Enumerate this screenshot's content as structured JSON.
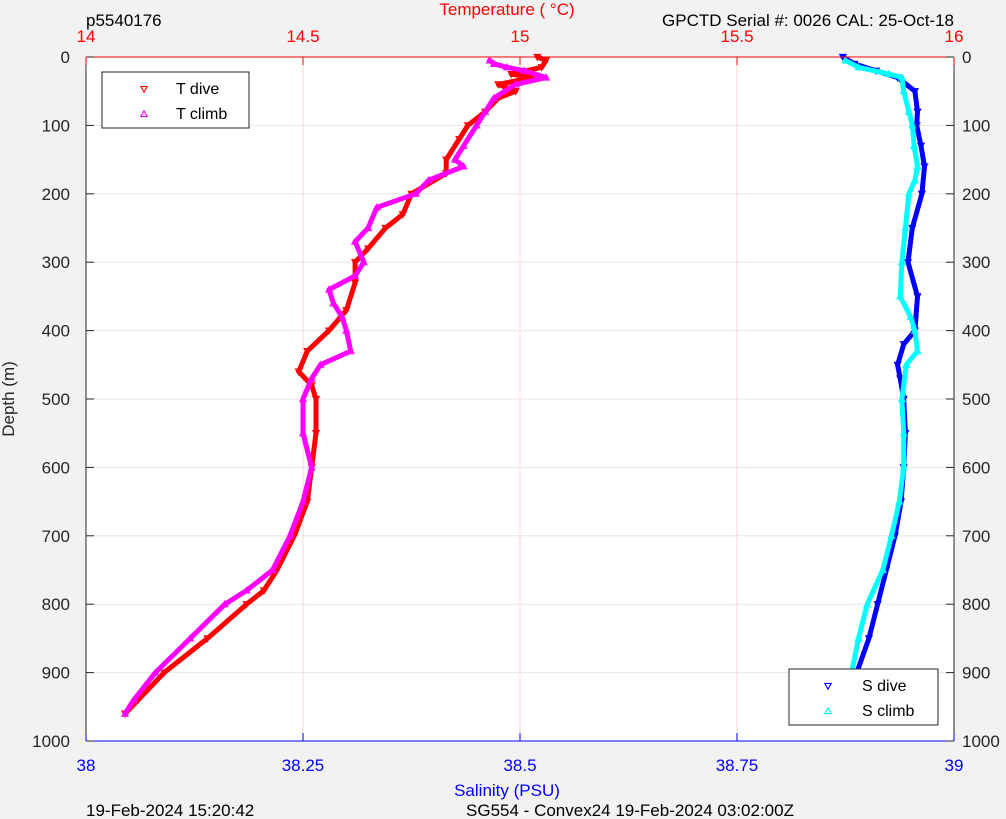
{
  "header": {
    "profile_id": "p5540176",
    "serial_info": "GPCTD Serial #: 0026 CAL: 25-Oct-18"
  },
  "footer": {
    "plot_time": "19-Feb-2024 15:20:42",
    "mission_info": "SG554 - Convex24 19-Feb-2024 03:02:00Z"
  },
  "colors": {
    "temperature_axis": "#ff0000",
    "salinity_axis": "#0000ff",
    "t_dive": "#ff0000",
    "t_climb": "#ff00ff",
    "s_dive": "#0000ff",
    "s_climb": "#00ffff"
  },
  "chart_data": {
    "type": "scatter",
    "ylabel": "Depth (m)",
    "ylim": [
      0,
      1000
    ],
    "y_reversed": true,
    "yticks": [
      0,
      100,
      200,
      300,
      400,
      500,
      600,
      700,
      800,
      900,
      1000
    ],
    "temperature_axis": {
      "label": "Temperature (   °C)",
      "lim": [
        14,
        16
      ],
      "ticks": [
        14,
        14.5,
        15,
        15.5,
        16
      ],
      "tick_labels": [
        "14",
        "14.5",
        "15",
        "15.5",
        "16"
      ],
      "position": "top"
    },
    "salinity_axis": {
      "label": "Salinity (PSU)",
      "lim": [
        38,
        39
      ],
      "ticks": [
        38,
        38.25,
        38.5,
        38.75,
        39
      ],
      "tick_labels": [
        "38",
        "38.25",
        "38.5",
        "38.75",
        "39"
      ],
      "position": "bottom"
    },
    "grid": true,
    "legends": [
      {
        "placement": "top-left",
        "entries": [
          "T dive",
          "T climb"
        ]
      },
      {
        "placement": "bottom-right",
        "entries": [
          "S dive",
          "S climb"
        ]
      }
    ],
    "series": [
      {
        "name": "T dive",
        "axis": "temperature",
        "marker": "triangle-down",
        "color": "#ff0000",
        "depth": [
          0,
          5,
          15,
          25,
          30,
          40,
          50,
          60,
          80,
          100,
          120,
          150,
          170,
          200,
          230,
          250,
          280,
          300,
          330,
          370,
          400,
          430,
          460,
          480,
          500,
          550,
          600,
          650,
          700,
          750,
          780,
          800,
          850,
          900,
          940,
          960
        ],
        "values": [
          15.04,
          15.06,
          15.05,
          14.98,
          15.03,
          14.95,
          14.99,
          14.95,
          14.92,
          14.88,
          14.86,
          14.83,
          14.83,
          14.75,
          14.73,
          14.69,
          14.65,
          14.62,
          14.62,
          14.6,
          14.56,
          14.51,
          14.49,
          14.52,
          14.53,
          14.53,
          14.52,
          14.51,
          14.48,
          14.44,
          14.41,
          14.37,
          14.28,
          14.18,
          14.12,
          14.09
        ]
      },
      {
        "name": "T climb",
        "axis": "temperature",
        "marker": "triangle-up",
        "color": "#ff00ff",
        "depth": [
          5,
          10,
          15,
          20,
          30,
          40,
          60,
          80,
          100,
          130,
          150,
          160,
          180,
          200,
          220,
          250,
          270,
          300,
          320,
          340,
          360,
          380,
          400,
          430,
          450,
          470,
          500,
          550,
          600,
          650,
          700,
          750,
          780,
          800,
          850,
          900,
          940,
          960
        ],
        "values": [
          14.93,
          14.94,
          14.97,
          15.01,
          15.06,
          14.99,
          14.94,
          14.92,
          14.9,
          14.87,
          14.85,
          14.87,
          14.79,
          14.76,
          14.67,
          14.65,
          14.62,
          14.64,
          14.62,
          14.56,
          14.57,
          14.59,
          14.6,
          14.61,
          14.54,
          14.52,
          14.5,
          14.5,
          14.52,
          14.5,
          14.47,
          14.43,
          14.37,
          14.32,
          14.24,
          14.16,
          14.11,
          14.09
        ]
      },
      {
        "name": "S dive",
        "axis": "salinity",
        "marker": "triangle-down",
        "color": "#0000ff",
        "depth": [
          0,
          10,
          20,
          30,
          50,
          80,
          100,
          130,
          160,
          200,
          250,
          300,
          350,
          400,
          420,
          450,
          470,
          500,
          550,
          600,
          650,
          700,
          750,
          800,
          850,
          900,
          940,
          960
        ],
        "values": [
          38.872,
          38.885,
          38.91,
          38.935,
          38.955,
          38.958,
          38.957,
          38.962,
          38.966,
          38.963,
          38.952,
          38.947,
          38.958,
          38.955,
          38.942,
          38.935,
          38.938,
          38.942,
          38.944,
          38.942,
          38.939,
          38.932,
          38.922,
          38.912,
          38.902,
          38.888,
          38.882,
          38.88
        ]
      },
      {
        "name": "S climb",
        "axis": "salinity",
        "marker": "triangle-up",
        "color": "#00ffff",
        "depth": [
          5,
          15,
          25,
          30,
          50,
          80,
          100,
          130,
          160,
          180,
          200,
          250,
          300,
          350,
          380,
          400,
          430,
          450,
          500,
          550,
          600,
          650,
          700,
          750,
          800,
          850,
          900,
          940,
          960
        ],
        "values": [
          38.875,
          38.89,
          38.925,
          38.94,
          38.942,
          38.948,
          38.952,
          38.954,
          38.958,
          38.955,
          38.948,
          38.944,
          38.94,
          38.938,
          38.95,
          38.955,
          38.958,
          38.945,
          38.94,
          38.942,
          38.942,
          38.937,
          38.928,
          38.918,
          38.9,
          38.89,
          38.882,
          38.877,
          38.875
        ]
      }
    ]
  }
}
